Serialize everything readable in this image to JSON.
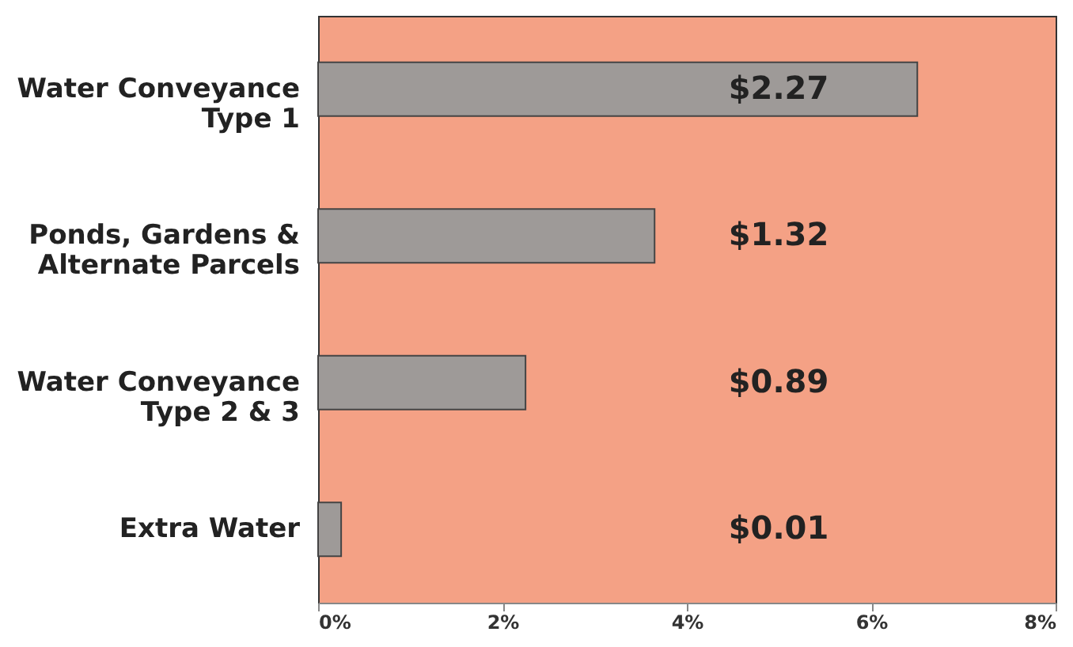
{
  "chart_data": {
    "type": "bar",
    "orientation": "horizontal",
    "categories": [
      "Water Conveyance\nType 1",
      "Ponds, Gardens &\nAlternate Parcels",
      "Water Conveyance\nType 2 & 3",
      "Extra Water"
    ],
    "values": [
      6.5,
      3.65,
      2.25,
      0.25
    ],
    "annotations": [
      "$2.27",
      "$1.32",
      "$0.89",
      "$0.01"
    ],
    "color": "#9e9a98",
    "xlim": [
      0,
      8
    ],
    "xticks": [
      {
        "value": 0,
        "label": "0%"
      },
      {
        "value": 2,
        "label": "2%"
      },
      {
        "value": 4,
        "label": "4%"
      },
      {
        "value": 6,
        "label": "6%"
      },
      {
        "value": 8,
        "label": "8%"
      }
    ],
    "grid": false
  }
}
